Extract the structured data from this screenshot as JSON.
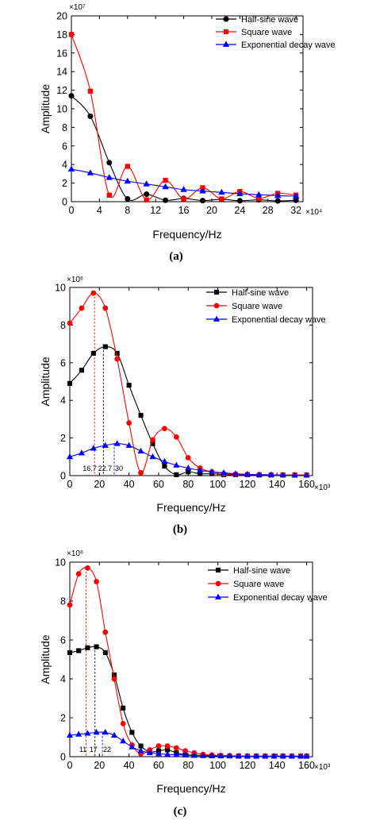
{
  "chart_data": [
    {
      "id": "a",
      "type": "line",
      "panel_label": "(a)",
      "xlabel": "Frequency/Hz",
      "ylabel": "Amplitude",
      "x_multiplier": "×10⁴",
      "y_multiplier": "×10⁷",
      "xlim": [
        0,
        33
      ],
      "ylim": [
        0,
        20
      ],
      "xticks": [
        0,
        4,
        8,
        12,
        16,
        20,
        24,
        28,
        32
      ],
      "yticks": [
        0,
        2,
        4,
        6,
        8,
        10,
        12,
        14,
        16,
        18,
        20
      ],
      "grid": false,
      "legend_position": "top-right",
      "series": [
        {
          "name": "Half-sine wave",
          "color": "#000000",
          "marker": "circle",
          "x": [
            0,
            2.7,
            5.4,
            8,
            10.7,
            13.4,
            16,
            18.7,
            21.4,
            24,
            26.7,
            29.4,
            32
          ],
          "y": [
            11.4,
            9.2,
            4.2,
            0.3,
            0.8,
            0.15,
            0.35,
            0.12,
            0.25,
            0.1,
            0.2,
            0.08,
            0.15
          ]
        },
        {
          "name": "Square wave",
          "color": "#ff0000",
          "marker": "square",
          "x": [
            0,
            2.7,
            5.4,
            8,
            10.7,
            13.4,
            16,
            18.7,
            21.4,
            24,
            26.7,
            29.4,
            32
          ],
          "y": [
            18,
            11.9,
            0.7,
            3.8,
            0.2,
            2.3,
            0.3,
            1.5,
            0.3,
            1.1,
            0.35,
            0.9,
            0.7
          ]
        },
        {
          "name": "Exponential decay wave",
          "color": "#0000ff",
          "marker": "triangle",
          "x": [
            0,
            2.7,
            5.4,
            8,
            10.7,
            13.4,
            16,
            18.7,
            21.4,
            24,
            26.7,
            29.4,
            32
          ],
          "y": [
            3.5,
            3.1,
            2.6,
            2.2,
            1.9,
            1.6,
            1.3,
            1.15,
            1.0,
            0.85,
            0.75,
            0.65,
            0.6
          ]
        }
      ],
      "annotations": []
    },
    {
      "id": "b",
      "type": "line",
      "panel_label": "(b)",
      "xlabel": "Frequency/Hz",
      "ylabel": "Amplitude",
      "x_multiplier": "×10³",
      "y_multiplier": "×10⁶",
      "xlim": [
        0,
        164
      ],
      "ylim": [
        0,
        10
      ],
      "xticks": [
        0,
        20,
        40,
        60,
        80,
        100,
        120,
        140,
        160
      ],
      "yticks": [
        0,
        2,
        4,
        6,
        8,
        10
      ],
      "grid": false,
      "legend_position": "top-right",
      "series": [
        {
          "name": "Half-sine wave",
          "color": "#000000",
          "marker": "square",
          "x": [
            0,
            8,
            16,
            24,
            32,
            40,
            48,
            56,
            64,
            72,
            80,
            88,
            96,
            104,
            112,
            120,
            128,
            136,
            144,
            152,
            160
          ],
          "y": [
            4.9,
            5.6,
            6.5,
            6.85,
            6.5,
            4.8,
            3.2,
            1.7,
            0.5,
            0.05,
            0.2,
            0.1,
            0.1,
            0.05,
            0.05,
            0.05,
            0.03,
            0.03,
            0.03,
            0.03,
            0.03
          ]
        },
        {
          "name": "Square wave",
          "color": "#ff0000",
          "marker": "circle",
          "x": [
            0,
            8,
            16,
            24,
            32,
            40,
            48,
            56,
            64,
            72,
            80,
            88,
            96,
            104,
            112,
            120,
            128,
            136,
            144,
            152,
            160
          ],
          "y": [
            8.1,
            8.9,
            9.7,
            8.9,
            6.2,
            2.8,
            0.15,
            1.9,
            2.5,
            2.05,
            0.95,
            0.4,
            0.2,
            0.1,
            0.08,
            0.06,
            0.05,
            0.04,
            0.03,
            0.03,
            0.03
          ]
        },
        {
          "name": "Exponential decay wave",
          "color": "#0000ff",
          "marker": "triangle",
          "x": [
            0,
            8,
            16,
            24,
            32,
            40,
            48,
            56,
            64,
            72,
            80,
            88,
            96,
            104,
            112,
            120,
            128,
            136,
            144,
            152,
            160
          ],
          "y": [
            1.0,
            1.2,
            1.45,
            1.6,
            1.7,
            1.6,
            1.3,
            1.0,
            0.75,
            0.55,
            0.4,
            0.28,
            0.2,
            0.15,
            0.1,
            0.07,
            0.05,
            0.04,
            0.03,
            0.02,
            0.02
          ]
        }
      ],
      "annotations": [
        {
          "text": "16.7",
          "x": 16.7,
          "color": "#ff0000",
          "peak": 9.7
        },
        {
          "text": "22.7",
          "x": 22.7,
          "color": "#000000",
          "peak": 6.85
        },
        {
          "text": "30",
          "x": 30,
          "color": "#0000ff",
          "peak": 1.7
        }
      ]
    },
    {
      "id": "c",
      "type": "line",
      "panel_label": "(c)",
      "xlabel": "Frequency/Hz",
      "ylabel": "Amplitude",
      "x_multiplier": "×10³",
      "y_multiplier": "×10⁶",
      "xlim": [
        0,
        164
      ],
      "ylim": [
        0,
        10
      ],
      "xticks": [
        0,
        20,
        40,
        60,
        80,
        100,
        120,
        140,
        160
      ],
      "yticks": [
        0,
        2,
        4,
        6,
        8,
        10
      ],
      "grid": false,
      "legend_position": "top-right",
      "series": [
        {
          "name": "Half-sine wave",
          "color": "#000000",
          "marker": "square",
          "x": [
            0,
            6,
            12,
            18,
            24,
            30,
            36,
            42,
            48,
            54,
            60,
            66,
            72,
            78,
            84,
            90,
            96,
            102,
            108,
            114,
            120,
            126,
            132,
            138,
            144,
            150,
            156,
            160
          ],
          "y": [
            5.35,
            5.45,
            5.6,
            5.65,
            5.35,
            4.2,
            2.5,
            1.25,
            0.55,
            0.25,
            0.3,
            0.35,
            0.2,
            0.1,
            0.08,
            0.06,
            0.05,
            0.05,
            0.04,
            0.04,
            0.03,
            0.03,
            0.03,
            0.03,
            0.03,
            0.03,
            0.03,
            0.03
          ]
        },
        {
          "name": "Square wave",
          "color": "#ff0000",
          "marker": "circle",
          "x": [
            0,
            6,
            12,
            18,
            24,
            30,
            36,
            42,
            48,
            54,
            60,
            66,
            72,
            78,
            84,
            90,
            96,
            102,
            108,
            114,
            120,
            126,
            132,
            138,
            144,
            150,
            156,
            160
          ],
          "y": [
            7.8,
            9.4,
            9.7,
            9.0,
            6.4,
            4.0,
            1.7,
            0.6,
            0.15,
            0.35,
            0.55,
            0.55,
            0.45,
            0.3,
            0.2,
            0.12,
            0.08,
            0.06,
            0.05,
            0.04,
            0.03,
            0.03,
            0.03,
            0.03,
            0.03,
            0.03,
            0.03,
            0.03
          ]
        },
        {
          "name": "Exponential decay wave",
          "color": "#0000ff",
          "marker": "triangle",
          "x": [
            0,
            6,
            12,
            18,
            24,
            30,
            36,
            42,
            48,
            54,
            60,
            66,
            72,
            78,
            84,
            90,
            96,
            102,
            108,
            114,
            120,
            126,
            132,
            138,
            144,
            150,
            156,
            160
          ],
          "y": [
            1.1,
            1.15,
            1.2,
            1.25,
            1.25,
            1.1,
            0.8,
            0.5,
            0.3,
            0.2,
            0.15,
            0.12,
            0.1,
            0.08,
            0.06,
            0.05,
            0.04,
            0.03,
            0.03,
            0.02,
            0.02,
            0.02,
            0.02,
            0.02,
            0.02,
            0.02,
            0.02,
            0.02
          ]
        }
      ],
      "annotations": [
        {
          "text": "11",
          "x": 11,
          "color": "#ff0000",
          "peak": 9.7
        },
        {
          "text": "17",
          "x": 17,
          "color": "#000000",
          "peak": 5.65
        },
        {
          "text": "22",
          "x": 22,
          "color": "#0000ff",
          "peak": 1.25
        }
      ]
    }
  ]
}
